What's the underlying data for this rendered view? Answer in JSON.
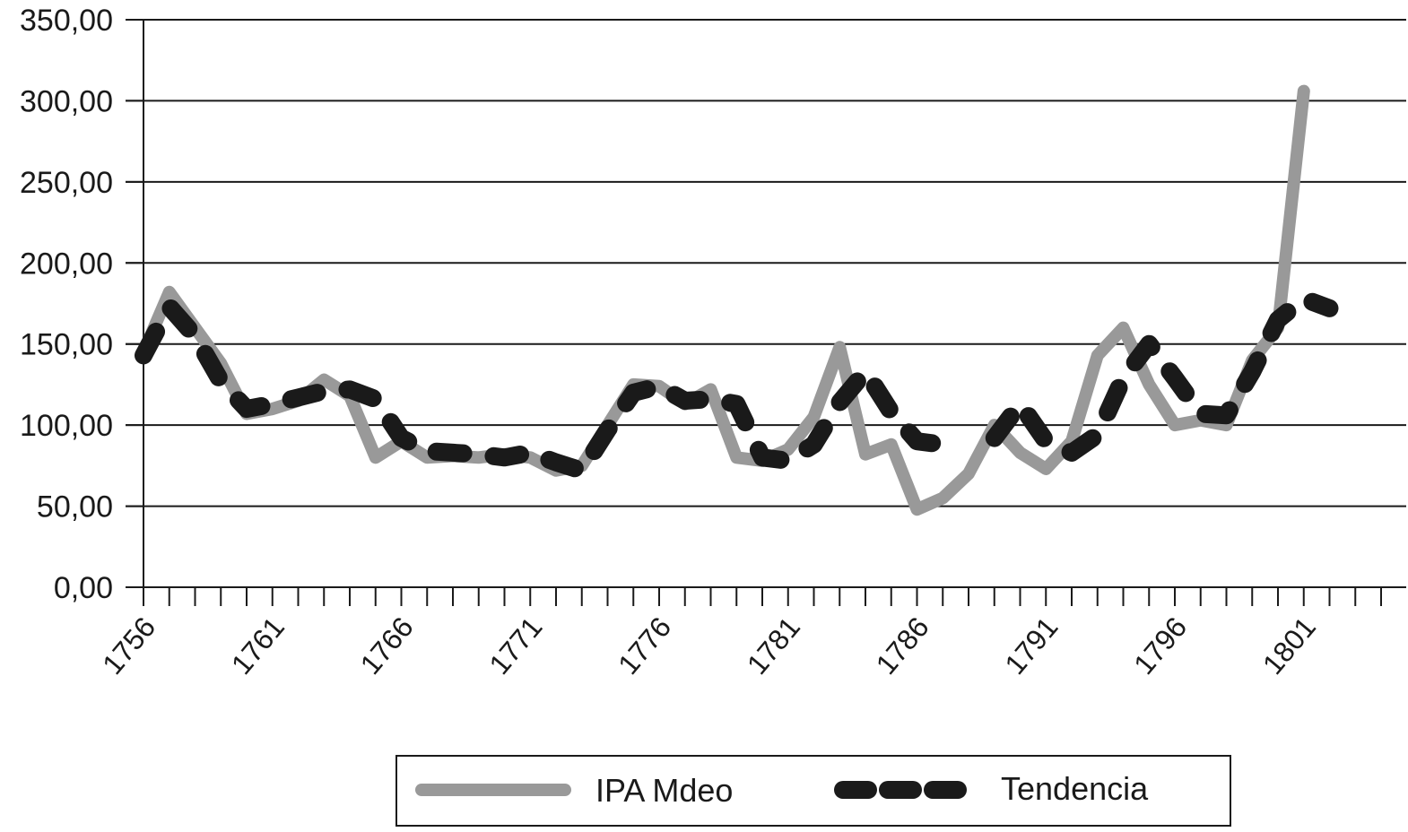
{
  "chart_data": {
    "type": "line",
    "title": "",
    "xlabel": "",
    "ylabel": "",
    "x": [
      1756,
      1757,
      1758,
      1759,
      1760,
      1761,
      1762,
      1763,
      1764,
      1765,
      1766,
      1767,
      1768,
      1769,
      1770,
      1771,
      1772,
      1773,
      1774,
      1775,
      1776,
      1777,
      1778,
      1779,
      1780,
      1781,
      1782,
      1783,
      1784,
      1785,
      1786,
      1787,
      1788,
      1789,
      1790,
      1791,
      1792,
      1793,
      1794,
      1795,
      1796,
      1797,
      1798,
      1799,
      1800,
      1801,
      1802,
      1803,
      1804
    ],
    "x_tick_labels": [
      "1756",
      "1761",
      "1766",
      "1771",
      "1776",
      "1781",
      "1786",
      "1791",
      "1796",
      "1801"
    ],
    "y_tick_labels": [
      "0,00",
      "50,00",
      "100,00",
      "150,00",
      "200,00",
      "250,00",
      "300,00",
      "350,00"
    ],
    "ylim": [
      0,
      350
    ],
    "grid": true,
    "legend_position": "bottom-center",
    "series": [
      {
        "name": "IPA Mdeo",
        "color": "#999999",
        "style": "solid",
        "values": [
          145,
          182,
          160,
          138,
          107,
          110,
          115,
          128,
          118,
          80,
          90,
          80,
          81,
          80,
          82,
          80,
          72,
          75,
          100,
          125,
          124,
          113,
          122,
          80,
          78,
          85,
          105,
          148,
          82,
          88,
          48,
          55,
          70,
          100,
          83,
          73,
          90,
          143,
          160,
          125,
          100,
          103,
          100,
          140,
          160,
          306,
          null,
          null,
          null
        ]
      },
      {
        "name": "Tendencia",
        "color": "#1a1a1a",
        "style": "dashed",
        "values": [
          143,
          173,
          155,
          127,
          110,
          113,
          117,
          121,
          122,
          116,
          92,
          84,
          83,
          82,
          80,
          83,
          77,
          72,
          97,
          120,
          124,
          115,
          116,
          113,
          80,
          78,
          88,
          114,
          133,
          108,
          90,
          88,
          null,
          92,
          113,
          90,
          83,
          94,
          129,
          150,
          129,
          107,
          106,
          133,
          165,
          178,
          172,
          null,
          null
        ]
      }
    ]
  }
}
